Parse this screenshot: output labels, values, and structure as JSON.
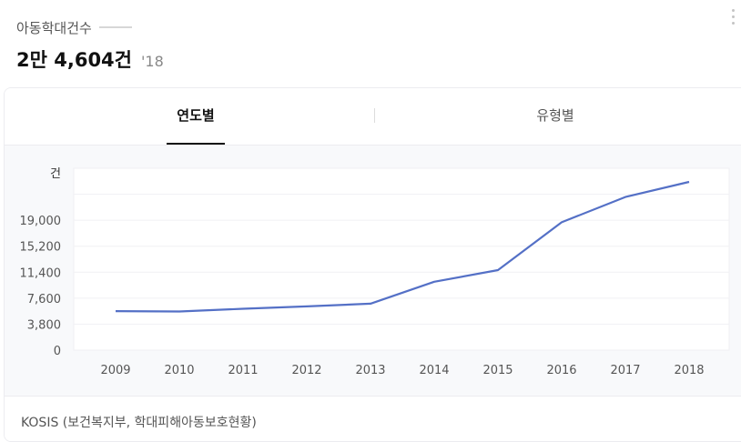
{
  "header": {
    "title": "아동학대건수",
    "value": "2만 4,604건",
    "year": "'18"
  },
  "tabs": [
    {
      "label": "연도별",
      "active": true
    },
    {
      "label": "유형별",
      "active": false
    }
  ],
  "chart_data": {
    "type": "line",
    "ylabel": "건",
    "ylim": [
      0,
      26600
    ],
    "yticks": [
      0,
      3800,
      7600,
      11400,
      15200,
      19000
    ],
    "ytick_labels": [
      "0",
      "3,800",
      "7,600",
      "11,400",
      "15,200",
      "19,000"
    ],
    "x": [
      "2009",
      "2010",
      "2011",
      "2012",
      "2013",
      "2014",
      "2015",
      "2016",
      "2017",
      "2018"
    ],
    "series": [
      {
        "values": [
          5700,
          5650,
          6050,
          6400,
          6800,
          10000,
          11700,
          18700,
          22400,
          24604
        ],
        "color": "#5470c6"
      }
    ],
    "grid": true
  },
  "source": "KOSIS (보건복지부, 학대피해아동보호현황)"
}
